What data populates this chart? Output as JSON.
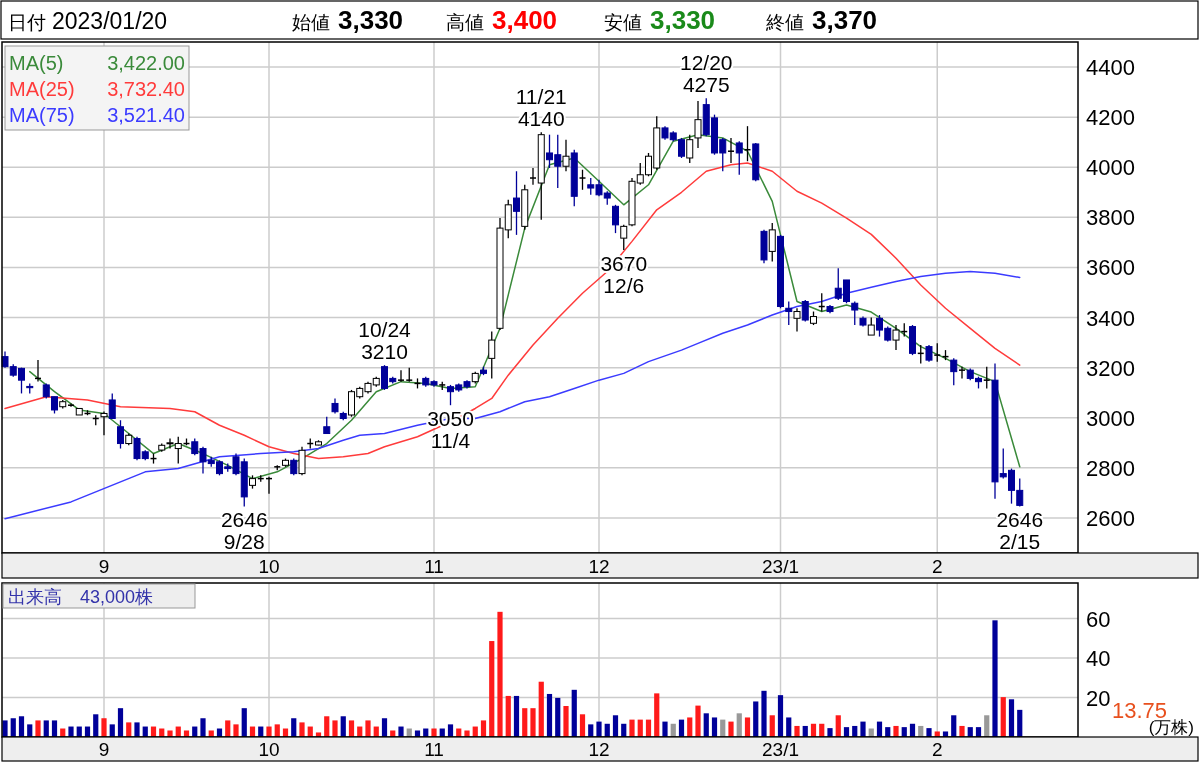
{
  "chart_data": [
    {
      "type": "candlestick",
      "categories": [
        null,
        null,
        null,
        null,
        null,
        null,
        null,
        null,
        null,
        null,
        null,
        null,
        "9",
        null,
        null,
        null,
        null,
        null,
        null,
        null,
        null,
        null,
        null,
        null,
        null,
        null,
        null,
        null,
        null,
        null,
        null,
        null,
        "10",
        null,
        null,
        null,
        null,
        null,
        null,
        null,
        null,
        null,
        null,
        null,
        null,
        null,
        null,
        null,
        null,
        null,
        null,
        null,
        "11",
        null,
        null,
        null,
        null,
        null,
        null,
        null,
        null,
        null,
        null,
        null,
        null,
        null,
        null,
        null,
        null,
        null,
        null,
        null,
        "12",
        null,
        null,
        null,
        null,
        null,
        null,
        null,
        null,
        null,
        null,
        null,
        null,
        null,
        null,
        null,
        null,
        null,
        null,
        null,
        null,
        null,
        "23/1",
        null,
        null,
        null,
        null,
        null,
        null,
        null,
        null,
        null,
        null,
        null,
        null,
        null,
        null,
        null,
        null,
        null,
        null,
        "2",
        null,
        null,
        null,
        null,
        null,
        null,
        null,
        null,
        null,
        null
      ],
      "ohlc": [
        [
          3244,
          3264,
          3200,
          3204
        ],
        [
          3204,
          3214,
          3164,
          3170
        ],
        [
          3197,
          3200,
          3097,
          3150
        ],
        [
          3125,
          3137,
          3097,
          3120
        ],
        [
          3157,
          3230,
          3145,
          3157
        ],
        [
          3131,
          3137,
          3077,
          3084
        ],
        [
          3084,
          3084,
          3017,
          3031
        ],
        [
          3044,
          3071,
          3037,
          3064
        ],
        [
          3050,
          3057,
          3044,
          3050
        ],
        [
          3011,
          3037,
          3011,
          3037
        ],
        [
          3017,
          3030,
          3010,
          3017
        ],
        [
          2997,
          3010,
          2970,
          2997
        ],
        [
          3004,
          3025,
          2930,
          3017
        ],
        [
          3071,
          3097,
          2997,
          2997
        ],
        [
          2964,
          2990,
          2877,
          2897
        ],
        [
          2897,
          2937,
          2890,
          2930
        ],
        [
          2917,
          2924,
          2830,
          2837
        ],
        [
          2864,
          2870,
          2830,
          2837
        ],
        [
          2837,
          2857,
          2817,
          2837
        ],
        [
          2871,
          2897,
          2864,
          2890
        ],
        [
          2897,
          2917,
          2877,
          2900
        ],
        [
          2877,
          2924,
          2817,
          2897
        ],
        [
          2897,
          2917,
          2890,
          2897
        ],
        [
          2904,
          2917,
          2850,
          2857
        ],
        [
          2877,
          2884,
          2777,
          2824
        ],
        [
          2830,
          2844,
          2804,
          2817
        ],
        [
          2824,
          2830,
          2770,
          2777
        ],
        [
          2804,
          2817,
          2784,
          2797
        ],
        [
          2844,
          2857,
          2770,
          2777
        ],
        [
          2824,
          2837,
          2646,
          2684
        ],
        [
          2730,
          2770,
          2717,
          2757
        ],
        [
          2757,
          2770,
          2744,
          2757
        ],
        [
          2757,
          2764,
          2697,
          2757
        ],
        [
          2804,
          2810,
          2790,
          2804
        ],
        [
          2810,
          2837,
          2804,
          2830
        ],
        [
          2830,
          2837,
          2770,
          2777
        ],
        [
          2777,
          2884,
          2770,
          2870
        ],
        [
          2897,
          2917,
          2877,
          2897
        ],
        [
          2891,
          2910,
          2890,
          2904
        ],
        [
          2964,
          3004,
          2937,
          2937
        ],
        [
          3057,
          3077,
          3017,
          3024
        ],
        [
          3017,
          3024,
          2990,
          2997
        ],
        [
          3011,
          3111,
          3004,
          3104
        ],
        [
          3084,
          3124,
          3077,
          3117
        ],
        [
          3104,
          3144,
          3097,
          3137
        ],
        [
          3131,
          3164,
          3124,
          3157
        ],
        [
          3204,
          3210,
          3111,
          3117
        ],
        [
          3157,
          3164,
          3137,
          3144
        ],
        [
          3150,
          3190,
          3144,
          3150
        ],
        [
          3150,
          3200,
          3144,
          3150
        ],
        [
          3137,
          3157,
          3117,
          3137
        ],
        [
          3157,
          3164,
          3124,
          3131
        ],
        [
          3144,
          3150,
          3124,
          3131
        ],
        [
          3131,
          3144,
          3111,
          3131
        ],
        [
          3124,
          3131,
          3050,
          3104
        ],
        [
          3131,
          3137,
          3104,
          3111
        ],
        [
          3144,
          3150,
          3117,
          3124
        ],
        [
          3144,
          3184,
          3137,
          3177
        ],
        [
          3190,
          3204,
          3170,
          3177
        ],
        [
          3237,
          3344,
          3157,
          3310
        ],
        [
          3357,
          3797,
          3350,
          3757
        ],
        [
          3750,
          3870,
          3717,
          3850
        ],
        [
          3877,
          3984,
          3730,
          3824
        ],
        [
          3764,
          3930,
          3750,
          3910
        ],
        [
          3957,
          3997,
          3930,
          3957
        ],
        [
          3937,
          4140,
          3790,
          4130
        ],
        [
          4057,
          4130,
          3997,
          4030
        ],
        [
          4050,
          4130,
          3917,
          4004
        ],
        [
          4004,
          4110,
          3984,
          4044
        ],
        [
          4057,
          4070,
          3844,
          3884
        ],
        [
          3957,
          3990,
          3910,
          3957
        ],
        [
          3930,
          3957,
          3890,
          3917
        ],
        [
          3930,
          3950,
          3884,
          3890
        ],
        [
          3897,
          3904,
          3850,
          3877
        ],
        [
          3844,
          3850,
          3737,
          3770
        ],
        [
          3717,
          3770,
          3670,
          3764
        ],
        [
          3770,
          3957,
          3764,
          3944
        ],
        [
          3937,
          4017,
          3930,
          3970
        ],
        [
          3970,
          4057,
          3964,
          4044
        ],
        [
          3997,
          4204,
          3990,
          4157
        ],
        [
          4157,
          4164,
          4110,
          4117
        ],
        [
          4137,
          4144,
          4104,
          4110
        ],
        [
          4110,
          4117,
          4037,
          4044
        ],
        [
          4037,
          4130,
          4017,
          4110
        ],
        [
          4117,
          4264,
          4077,
          4190
        ],
        [
          4250,
          4275,
          4124,
          4130
        ],
        [
          4197,
          4210,
          4050,
          4057
        ],
        [
          4110,
          4117,
          3984,
          4057
        ],
        [
          4064,
          4117,
          4017,
          4064
        ],
        [
          4097,
          4104,
          3970,
          4057
        ],
        [
          4070,
          4164,
          4024,
          4070
        ],
        [
          4093,
          4097,
          3944,
          3950
        ],
        [
          3744,
          3750,
          3617,
          3630
        ],
        [
          3664,
          3777,
          3624,
          3750
        ],
        [
          3724,
          3730,
          3437,
          3444
        ],
        [
          3437,
          3464,
          3370,
          3424
        ],
        [
          3397,
          3437,
          3344,
          3424
        ],
        [
          3464,
          3470,
          3384,
          3390
        ],
        [
          3377,
          3424,
          3370,
          3404
        ],
        [
          3444,
          3497,
          3424,
          3444
        ],
        [
          3444,
          3450,
          3417,
          3424
        ],
        [
          3517,
          3597,
          3470,
          3477
        ],
        [
          3550,
          3550,
          3457,
          3464
        ],
        [
          3457,
          3464,
          3370,
          3430
        ],
        [
          3397,
          3404,
          3364,
          3370
        ],
        [
          3330,
          3400,
          3330,
          3370
        ],
        [
          3397,
          3410,
          3324,
          3350
        ],
        [
          3357,
          3364,
          3304,
          3310
        ],
        [
          3310,
          3370,
          3270,
          3350
        ],
        [
          3344,
          3377,
          3324,
          3344
        ],
        [
          3364,
          3370,
          3250,
          3257
        ],
        [
          3257,
          3290,
          3217,
          3257
        ],
        [
          3284,
          3290,
          3224,
          3230
        ],
        [
          3250,
          3297,
          3224,
          3250
        ],
        [
          3244,
          3270,
          3230,
          3244
        ],
        [
          3230,
          3237,
          3130,
          3184
        ],
        [
          3190,
          3204,
          3157,
          3190
        ],
        [
          3190,
          3197,
          3150,
          3157
        ],
        [
          3157,
          3164,
          3117,
          3144
        ],
        [
          3150,
          3204,
          3117,
          3150
        ],
        [
          3150,
          3217,
          2677,
          2744
        ],
        [
          2777,
          2877,
          2757,
          2764
        ],
        [
          2790,
          2797,
          2657,
          2710
        ],
        [
          2710,
          2757,
          2646,
          2650
        ]
      ],
      "series": [
        {
          "name": "MA(5)",
          "type": "line",
          "color": "#3a8a3a",
          "values": [
            null,
            null,
            null,
            3184,
            null,
            null,
            3104,
            null,
            null,
            3031,
            null,
            null,
            3017,
            null,
            null,
            2937,
            null,
            null,
            2857,
            null,
            null,
            2897,
            null,
            null,
            2857,
            null,
            null,
            2810,
            null,
            null,
            2757,
            null,
            null,
            2784,
            null,
            null,
            2837,
            null,
            null,
            2897,
            null,
            null,
            2990,
            null,
            null,
            3104,
            null,
            null,
            3144,
            null,
            null,
            3137,
            null,
            null,
            3117,
            null,
            null,
            3124,
            null,
            null,
            3357,
            null,
            null,
            3757,
            null,
            null,
            4010,
            null,
            null,
            4037,
            null,
            null,
            3944,
            null,
            null,
            3850,
            null,
            null,
            3930,
            null,
            null,
            4104,
            null,
            null,
            4130,
            null,
            null,
            4117,
            null,
            null,
            4064,
            null,
            null,
            3864,
            null,
            null,
            3464,
            null,
            null,
            3424,
            null,
            null,
            3450,
            null,
            null,
            3422,
            null,
            null,
            3357,
            null,
            null,
            3284,
            null,
            null,
            3237,
            null,
            null,
            3184,
            null,
            null,
            3144,
            null,
            null,
            2804
          ]
        },
        {
          "name": "MA(25)",
          "type": "line",
          "color": "#ff3b3b",
          "values": [
            3037,
            null,
            null,
            null,
            null,
            3084,
            null,
            null,
            null,
            null,
            3071,
            null,
            null,
            null,
            3044,
            null,
            null,
            null,
            null,
            null,
            3037,
            null,
            null,
            3024,
            null,
            null,
            2970,
            null,
            null,
            2930,
            null,
            null,
            2884,
            null,
            null,
            2857,
            null,
            null,
            2837,
            null,
            null,
            2844,
            null,
            null,
            2857,
            null,
            2884,
            null,
            null,
            null,
            2924,
            null,
            null,
            null,
            2984,
            null,
            null,
            3037,
            null,
            3077,
            null,
            3170,
            null,
            null,
            3290,
            null,
            null,
            3397,
            null,
            null,
            3497,
            null,
            null,
            3584,
            null,
            null,
            3704,
            null,
            null,
            3830,
            null,
            null,
            3900,
            null,
            null,
            3984,
            null,
            null,
            4010,
            null,
            4017,
            null,
            null,
            3984,
            null,
            null,
            3904,
            null,
            null,
            3857,
            null,
            null,
            3797,
            null,
            null,
            3732,
            null,
            null,
            3637,
            null,
            null,
            3530,
            null,
            null,
            3437,
            null,
            null,
            3357,
            null,
            null,
            3277,
            null,
            null,
            3210
          ]
        },
        {
          "name": "MA(75)",
          "type": "line",
          "color": "#3b3bff",
          "values": [
            2597,
            null,
            null,
            null,
            null,
            null,
            null,
            null,
            2664,
            null,
            null,
            null,
            null,
            null,
            null,
            null,
            null,
            2784,
            null,
            null,
            null,
            2797,
            null,
            null,
            null,
            null,
            2844,
            null,
            null,
            null,
            null,
            2857,
            null,
            null,
            null,
            2864,
            null,
            null,
            2877,
            null,
            null,
            2910,
            null,
            2930,
            null,
            null,
            2937,
            null,
            null,
            null,
            2970,
            null,
            null,
            null,
            2997,
            null,
            null,
            2997,
            null,
            null,
            3024,
            null,
            null,
            3064,
            null,
            null,
            3084,
            null,
            null,
            3117,
            null,
            null,
            3150,
            null,
            null,
            3177,
            null,
            null,
            3224,
            null,
            null,
            null,
            3270,
            null,
            3297,
            null,
            null,
            3337,
            null,
            null,
            3370,
            null,
            null,
            3410,
            null,
            null,
            3444,
            null,
            null,
            3464,
            null,
            null,
            3497,
            null,
            null,
            3521,
            null,
            null,
            3544,
            null,
            null,
            3564,
            null,
            null,
            3577,
            null,
            null,
            3584,
            null,
            null,
            3577,
            null,
            null,
            3560
          ]
        }
      ],
      "ylim": [
        2460,
        4500
      ],
      "yticks": [
        2600,
        2800,
        3000,
        3200,
        3400,
        3600,
        3800,
        4000,
        4200,
        4400
      ],
      "grid": true,
      "legend": "top left",
      "annotations": [
        "日付",
        "2023/01/20",
        "始値",
        "3,330",
        "高値",
        "3,400",
        "安値",
        "3,330",
        "終値",
        "3,370",
        "3,422.00",
        "3,732.40",
        "3,521.40",
        {
          "text": "2646 9/28",
          "y": 2646
        },
        {
          "text": "10/24 3210",
          "y": 3210
        },
        {
          "text": "3050 11/4",
          "y": 3050
        },
        {
          "text": "11/21 4140",
          "y": 4140
        },
        {
          "text": "3670 12/6",
          "y": 3670
        },
        {
          "text": "12/20 4275",
          "y": 4275
        },
        {
          "text": "2646 2/15",
          "y": 2646
        }
      ]
    },
    {
      "type": "bar",
      "title": "出来高　43,000株",
      "ylabel": "(万株)",
      "categories": [
        null,
        null,
        null,
        null,
        null,
        null,
        null,
        null,
        null,
        null,
        null,
        null,
        "9",
        null,
        null,
        null,
        null,
        null,
        null,
        null,
        null,
        null,
        null,
        null,
        null,
        null,
        null,
        null,
        null,
        null,
        null,
        null,
        "10",
        null,
        null,
        null,
        null,
        null,
        null,
        null,
        null,
        null,
        null,
        null,
        null,
        null,
        null,
        null,
        null,
        null,
        null,
        null,
        "11",
        null,
        null,
        null,
        null,
        null,
        null,
        null,
        null,
        null,
        null,
        null,
        null,
        null,
        null,
        null,
        null,
        null,
        null,
        null,
        "12",
        null,
        null,
        null,
        null,
        null,
        null,
        null,
        null,
        null,
        null,
        null,
        null,
        null,
        null,
        null,
        null,
        null,
        null,
        null,
        null,
        null,
        "23/1",
        null,
        null,
        null,
        null,
        null,
        null,
        null,
        null,
        null,
        null,
        null,
        null,
        null,
        null,
        null,
        null,
        null,
        null,
        "2",
        null,
        null,
        null,
        null,
        null,
        null,
        null,
        null,
        null,
        null
      ],
      "values": [
        8.4,
        9.5,
        10.5,
        6.4,
        8.4,
        8.4,
        8.4,
        4.3,
        5.3,
        5.3,
        5.3,
        11.5,
        9.5,
        6.4,
        14.6,
        7.4,
        7.4,
        5.3,
        5.3,
        4.3,
        3.3,
        5.3,
        3.3,
        5.3,
        9.5,
        3.3,
        4.3,
        8.4,
        6.4,
        14.6,
        5.3,
        5.3,
        5.3,
        6.4,
        4.3,
        9.5,
        7.4,
        5.3,
        2.3,
        10.5,
        8.4,
        10.5,
        8.4,
        5.3,
        8.4,
        5.3,
        9.5,
        3.3,
        5.3,
        4.3,
        3.3,
        4.3,
        4.3,
        4.3,
        6.4,
        4.3,
        3.3,
        5.3,
        8.4,
        48.6,
        63.4,
        20.8,
        20.8,
        14.6,
        14.6,
        28,
        21.8,
        19.8,
        15.7,
        23.9,
        11.5,
        6.4,
        7.8,
        6.7,
        11,
        6.7,
        8.8,
        8.8,
        8.8,
        22.1,
        7.8,
        6.7,
        8.8,
        9.9,
        15.9,
        12,
        9.9,
        8.8,
        7.8,
        12,
        9.9,
        18,
        23.4,
        11,
        21.2,
        9.9,
        5.6,
        5.6,
        6.7,
        6.7,
        4.5,
        11,
        5,
        5.6,
        7.8,
        4.3,
        7.8,
        5,
        5.6,
        5,
        6.7,
        5.6,
        4.5,
        2.8,
        2.8,
        11,
        5.6,
        5,
        5,
        11,
        59.1,
        20.2,
        19.1,
        13.75
      ],
      "colors": [
        "#000099",
        "#000099",
        "#000099",
        "#000099",
        "#ff1a1a",
        "#000099",
        "#000099",
        "#ff1a1a",
        "#000099",
        "#000099",
        "#000099",
        "#000099",
        "#ff1a1a",
        "#000099",
        "#000099",
        "#ff1a1a",
        "#000099",
        "#000099",
        "#ff1a1a",
        "#ff1a1a",
        "#ff1a1a",
        "#ff1a1a",
        "#ff1a1a",
        "#000099",
        "#000099",
        "#ff1a1a",
        "#000099",
        "#ff1a1a",
        "#ff1a1a",
        "#000099",
        "#ff1a1a",
        "#000099",
        "#ff1a1a",
        "#ff1a1a",
        "#ff1a1a",
        "#000099",
        "#ff1a1a",
        "#ff1a1a",
        "#ff1a1a",
        "#ff1a1a",
        "#ff1a1a",
        "#000099",
        "#ff1a1a",
        "#ff1a1a",
        "#ff1a1a",
        "#ff1a1a",
        "#000099",
        "#ff1a1a",
        "#000099",
        "#999999",
        "#000099",
        "#000099",
        "#ff1a1a",
        "#000099",
        "#000099",
        "#ff1a1a",
        "#ff1a1a",
        "#ff1a1a",
        "#ff1a1a",
        "#ff1a1a",
        "#ff1a1a",
        "#ff1a1a",
        "#000099",
        "#ff1a1a",
        "#ff1a1a",
        "#ff1a1a",
        "#000099",
        "#000099",
        "#ff1a1a",
        "#000099",
        "#ff1a1a",
        "#000099",
        "#000099",
        "#000099",
        "#000099",
        "#000099",
        "#ff1a1a",
        "#ff1a1a",
        "#ff1a1a",
        "#ff1a1a",
        "#000099",
        "#999999",
        "#000099",
        "#ff1a1a",
        "#ff1a1a",
        "#000099",
        "#000099",
        "#999999",
        "#ff1a1a",
        "#999999",
        "#ff1a1a",
        "#000099",
        "#000099",
        "#ff1a1a",
        "#000099",
        "#000099",
        "#ff1a1a",
        "#000099",
        "#ff1a1a",
        "#ff1a1a",
        "#000099",
        "#ff1a1a",
        "#000099",
        "#000099",
        "#000099",
        "#999999",
        "#000099",
        "#000099",
        "#ff1a1a",
        "#000099",
        "#000099",
        "#999999",
        "#000099",
        "#ff1a1a",
        "#000099",
        "#000099",
        "#ff1a1a",
        "#000099",
        "#000099",
        "#999999",
        "#000099",
        "#ff1a1a",
        "#000099",
        "#000099"
      ],
      "ylim": [
        0,
        78
      ],
      "yticks": [
        20,
        40,
        60
      ],
      "grid": true,
      "annotations": [
        "13.75"
      ]
    }
  ]
}
